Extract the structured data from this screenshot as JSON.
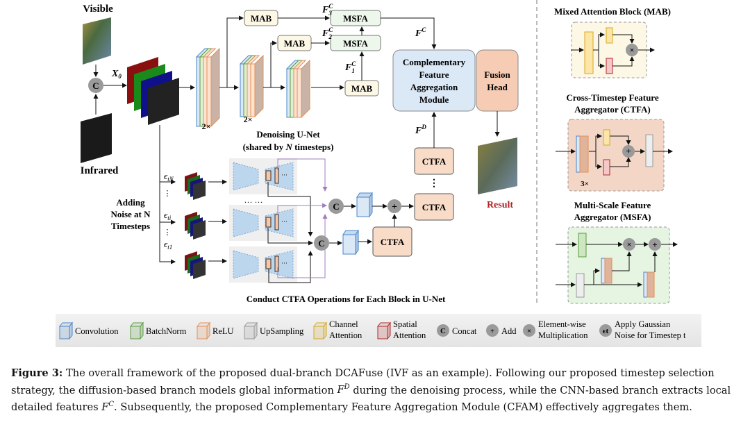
{
  "labels": {
    "visible": "Visible",
    "infrared": "Infrared",
    "x0": "X",
    "x0_sub": "0",
    "concat": "C",
    "rep1": "2×",
    "rep2": "2×",
    "unet_title_1": "Denoising U-Net",
    "unet_title_2a": "(shared by ",
    "unet_title_2n": "N",
    "unet_title_2b": " timesteps)",
    "mab": "MAB",
    "msfa": "MSFA",
    "f3": "F",
    "f3_sup": "C",
    "f3_sub": "3",
    "f2": "F",
    "f2_sup": "C",
    "f2_sub": "2",
    "f1": "F",
    "f1_sup": "C",
    "f1_sub": "1",
    "fc": "F",
    "fc_sup": "C",
    "fd": "F",
    "fd_sup": "D",
    "cfam": [
      "Complementary",
      "Feature",
      "Aggregation",
      "Module"
    ],
    "fusion": [
      "Fusion",
      "Head"
    ],
    "ctfa": "CTFA",
    "result": "Result",
    "noise": [
      "Adding",
      "Noise at N",
      "Timesteps"
    ],
    "eps_n": "ϵ",
    "eps_n_sub": "tN",
    "eps_i": "ϵ",
    "eps_i_sub": "ti",
    "eps_1": "ϵ",
    "eps_1_sub": "t1",
    "dots": "… …",
    "ctfa_note": "Conduct CTFA Operations for Each Block in U-Net",
    "plus": "+",
    "times": "×",
    "rep3": "3×"
  },
  "side": {
    "mab_title": "Mixed Attention Block (MAB)",
    "ctfa_title": [
      "Cross-Timestep Feature",
      "Aggregator (CTFA)"
    ],
    "msfa_title": [
      "Multi-Scale Feature",
      "Aggregator (MSFA)"
    ]
  },
  "legend": [
    {
      "label": "Convolution",
      "icon": "cube-icon",
      "color": "#4a86c8"
    },
    {
      "label": "BatchNorm",
      "icon": "cube-icon",
      "color": "#5a9a40"
    },
    {
      "label": "ReLU",
      "icon": "cube-icon",
      "color": "#e0905a"
    },
    {
      "label": "UpSampling",
      "icon": "cube-icon",
      "color": "#999999"
    },
    {
      "label": "Channel|Attention",
      "icon": "cube-icon",
      "color": "#d6a820"
    },
    {
      "label": "Spatial|Attention",
      "icon": "cube-icon",
      "color": "#b02a2a"
    },
    {
      "label": "Concat",
      "icon": "concat-icon",
      "glyph": "C"
    },
    {
      "label": "Add",
      "icon": "add-icon",
      "glyph": "+"
    },
    {
      "label": "Element-wise|Multiplication",
      "icon": "multiply-icon",
      "glyph": "×"
    },
    {
      "label": "Apply Gaussian|Noise for Timestep t",
      "icon": "noise-icon",
      "glyph": "ϵt"
    }
  ],
  "caption": {
    "label": "Figure 3:",
    "text": " The overall framework of the proposed dual-branch DCAFuse (IVF as an example). Following our proposed timestep selection strategy, the diffusion-based branch models global information F^D during the denoising process, while the CNN-based branch extracts local detailed features F^C. Subsequently, the proposed Complementary Feature Aggregation Module (CFAM) effectively aggregates them."
  },
  "colors": {
    "result": "#b22222",
    "cfam": "#dbe8f6",
    "fusion": "#f6cdb4",
    "mab_bg": "#fdf7e6",
    "msfa_bg": "#eef7ec",
    "ctfa": "#f8dcc8"
  }
}
